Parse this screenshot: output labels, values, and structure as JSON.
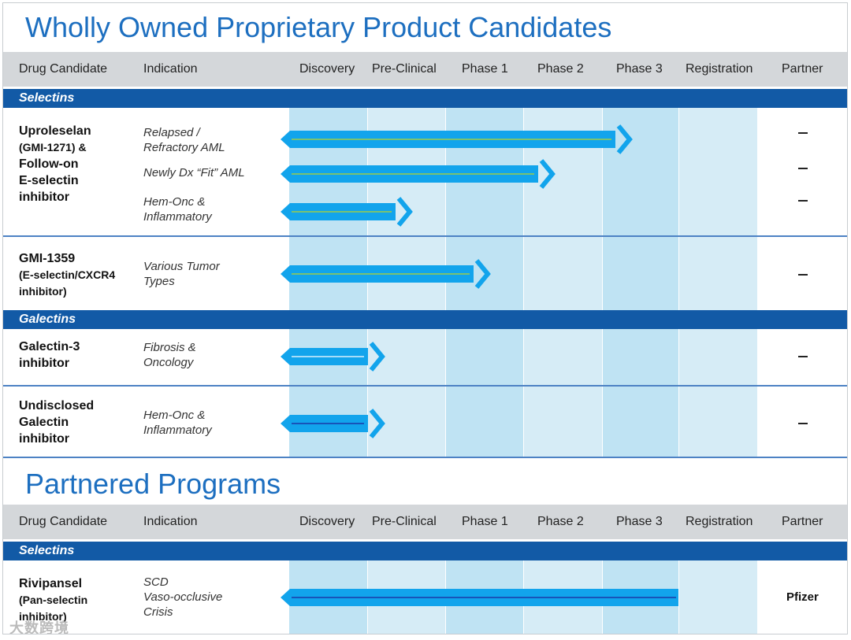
{
  "title": "Wholly Owned Proprietary Product Candidates",
  "partnered_title": "Partnered Programs",
  "headers": {
    "drug_candidate": "Drug Candidate",
    "indication": "Indication",
    "discovery": "Discovery",
    "preclinical": "Pre-Clinical",
    "phase1": "Phase 1",
    "phase2": "Phase 2",
    "phase3": "Phase 3",
    "registration": "Registration",
    "partner": "Partner"
  },
  "sections": {
    "selectins": "Selectins",
    "galectins": "Galectins",
    "partnered_selectins": "Selectins"
  },
  "rows": {
    "uproleselan": {
      "name_l1": "Uproleselan",
      "name_l2": "(GMI-1271) &",
      "name_l3": "Follow-on",
      "name_l4": "E-selectin",
      "name_l5": "inhibitor",
      "ind1_l1": "Relapsed /",
      "ind1_l2": "Refractory AML",
      "ind2": "Newly Dx “Fit” AML",
      "ind3_l1": "Hem-Onc &",
      "ind3_l2": "Inflammatory",
      "partner1": "–",
      "partner2": "–",
      "partner3": "–"
    },
    "gmi1359": {
      "name_l1": "GMI-1359",
      "name_l2": "(E-selectin/CXCR4",
      "name_l3": "inhibitor)",
      "ind_l1": "Various Tumor",
      "ind_l2": "Types",
      "partner": "–"
    },
    "galectin3": {
      "name_l1": "Galectin-3",
      "name_l2": "inhibitor",
      "ind_l1": "Fibrosis &",
      "ind_l2": "Oncology",
      "partner": "–"
    },
    "undisclosed": {
      "name_l1": "Undisclosed",
      "name_l2": "Galectin",
      "name_l3": "inhibitor",
      "ind_l1": "Hem-Onc &",
      "ind_l2": "Inflammatory",
      "partner": "–"
    },
    "rivipansel": {
      "name_l1": "Rivipansel",
      "name_l2": "(Pan-selectin",
      "name_l3": "inhibitor)",
      "ind_l1": "SCD",
      "ind_l2": "Vaso-occlusive",
      "ind_l3": "Crisis",
      "partner": "Pfizer"
    }
  },
  "watermark": "大数跨境",
  "colors": {
    "title_blue": "#1d6fc0",
    "section_navy": "#125aa6",
    "bar_cyan": "#12a4ec",
    "header_gray": "#d4d7da"
  }
}
